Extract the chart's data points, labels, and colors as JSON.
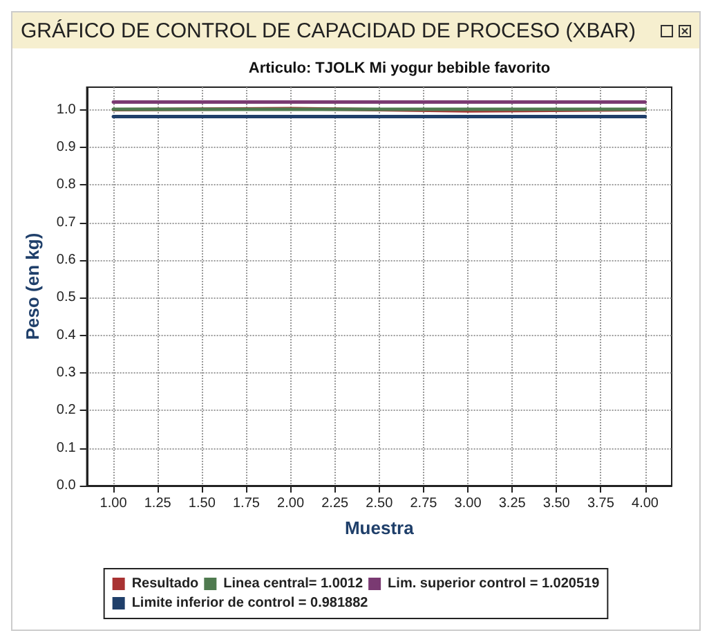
{
  "chart_data": {
    "type": "line",
    "title": "GRÁFICO DE CONTROL DE CAPACIDAD DE PROCESO (XBAR)",
    "subtitle": "Articulo: TJOLK Mi yogur bebible favorito",
    "xlabel": "Muestra",
    "ylabel": "Peso (en kg)",
    "series": [
      {
        "name": "Resultado",
        "color": "#a83232",
        "x": [
          1,
          2,
          3,
          4
        ],
        "values": [
          1.0,
          1.003,
          0.997,
          1.0
        ]
      },
      {
        "name": "Linea central= 1.0012",
        "color": "#4f7a4f",
        "x": [
          1,
          4
        ],
        "values": [
          1.0012,
          1.0012
        ]
      },
      {
        "name": "Lim. superior control = 1.020519",
        "color": "#7a3a72",
        "x": [
          1,
          4
        ],
        "values": [
          1.020519,
          1.020519
        ]
      },
      {
        "name": "Limite inferior de control = 0.981882",
        "color": "#1f3f6a",
        "x": [
          1,
          4
        ],
        "values": [
          0.981882,
          0.981882
        ]
      }
    ],
    "xlim": [
      0.85,
      4.15
    ],
    "xticks": [
      {
        "value": 1,
        "label": "1.00"
      },
      {
        "value": 1.25,
        "label": "1.25"
      },
      {
        "value": 1.5,
        "label": "1.50"
      },
      {
        "value": 1.75,
        "label": "1.75"
      },
      {
        "value": 2,
        "label": "2.00"
      },
      {
        "value": 2.25,
        "label": "2.25"
      },
      {
        "value": 2.5,
        "label": "2.50"
      },
      {
        "value": 2.75,
        "label": "2.75"
      },
      {
        "value": 3,
        "label": "3.00"
      },
      {
        "value": 3.25,
        "label": "3.25"
      },
      {
        "value": 3.5,
        "label": "3.50"
      },
      {
        "value": 3.75,
        "label": "3.75"
      },
      {
        "value": 4,
        "label": "4.00"
      }
    ],
    "ylim": [
      0,
      1.06
    ],
    "yticks": [
      {
        "value": 0,
        "label": "0.0"
      },
      {
        "value": 0.1,
        "label": "0.1"
      },
      {
        "value": 0.2,
        "label": "0.2"
      },
      {
        "value": 0.3,
        "label": "0.3"
      },
      {
        "value": 0.4,
        "label": "0.4"
      },
      {
        "value": 0.5,
        "label": "0.5"
      },
      {
        "value": 0.6,
        "label": "0.6"
      },
      {
        "value": 0.7,
        "label": "0.7"
      },
      {
        "value": 0.8,
        "label": "0.8"
      },
      {
        "value": 0.9,
        "label": "0.9"
      },
      {
        "value": 1,
        "label": "1.0"
      }
    ],
    "grid": true,
    "legend": "bottom",
    "marker": "none",
    "line_style": "solid"
  }
}
